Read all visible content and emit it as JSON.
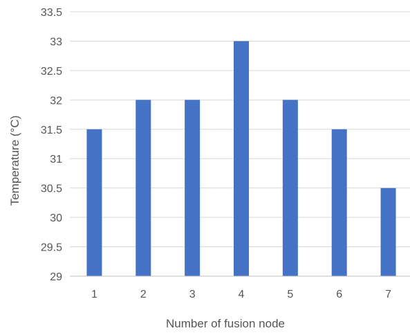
{
  "chart_data": {
    "type": "bar",
    "title": "",
    "xlabel": "Number  of fusion node",
    "ylabel": "Temperature (°C)",
    "categories": [
      "1",
      "2",
      "3",
      "4",
      "5",
      "6",
      "7"
    ],
    "values": [
      31.5,
      32,
      32,
      33,
      32,
      31.5,
      30.5
    ],
    "ylim": [
      29,
      33.5
    ],
    "yticks": [
      "29",
      "29.5",
      "30",
      "30.5",
      "31",
      "31.5",
      "32",
      "32.5",
      "33",
      "33.5"
    ],
    "grid": true,
    "legend": "none",
    "bar_color": "#4472c4"
  }
}
